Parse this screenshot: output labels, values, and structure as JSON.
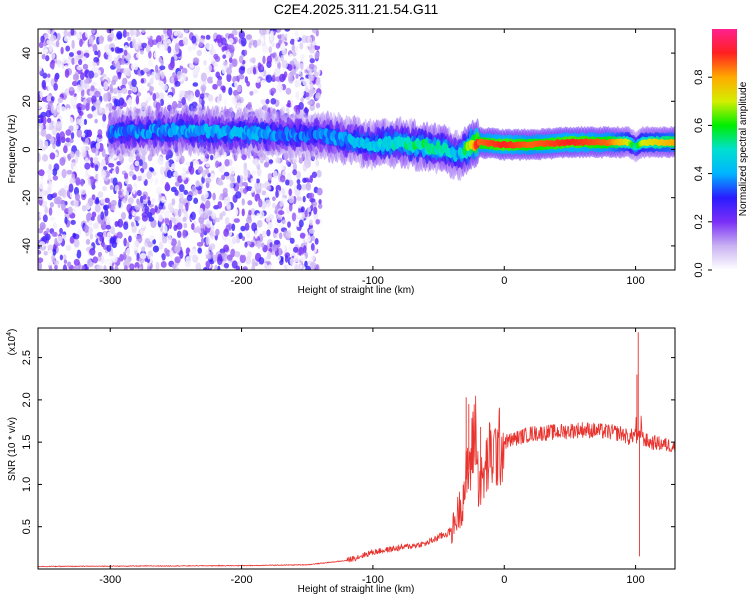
{
  "title": "C2E4.2025.311.21.54.G11",
  "chart_data": [
    {
      "type": "heatmap",
      "name": "spectrogram",
      "xlabel": "Height of straight line (km)",
      "ylabel": "Frequency (Hz)",
      "xlim": [
        -355,
        130
      ],
      "ylim": [
        -50,
        50
      ],
      "xticks": [
        -300,
        -200,
        -100,
        0,
        100
      ],
      "xtick_labels": [
        "-300",
        "-200",
        "-100",
        "0",
        "100"
      ],
      "yticks": [
        -40,
        -20,
        0,
        20,
        40
      ],
      "ytick_labels": [
        "-40",
        "-20",
        "0",
        "20",
        "40"
      ],
      "colorbar": {
        "label": "Normalized spectral amplitude",
        "range": [
          0,
          1
        ],
        "ticks": [
          0.0,
          0.2,
          0.4,
          0.6,
          0.8
        ],
        "tick_labels": [
          "0.0",
          "0.2",
          "0.4",
          "0.6",
          "0.8"
        ],
        "colors": [
          "#ffffff",
          "#c9b2f2",
          "#7b2ff7",
          "#2a1cff",
          "#00b4ff",
          "#00e0d0",
          "#00ee00",
          "#d4ee00",
          "#ffaa00",
          "#ff2020",
          "#ff2090"
        ]
      },
      "ridge": {
        "x": [
          -295,
          -250,
          -200,
          -160,
          -140,
          -120,
          -100,
          -80,
          -60,
          -45,
          -35,
          -28,
          -20,
          0,
          20,
          50,
          80,
          95,
          100,
          105,
          130
        ],
        "center_hz": [
          7,
          8,
          7,
          6,
          6,
          4,
          2,
          3,
          1,
          0,
          -3,
          1,
          3,
          2,
          2,
          3,
          3,
          3,
          1,
          3,
          3
        ],
        "peak_amplitude": [
          0.3,
          0.35,
          0.35,
          0.3,
          0.3,
          0.35,
          0.4,
          0.45,
          0.5,
          0.45,
          0.35,
          0.6,
          0.85,
          0.9,
          0.85,
          0.9,
          0.85,
          0.7,
          0.5,
          0.7,
          0.8
        ]
      },
      "noise_region": {
        "x_from": -355,
        "x_to": -140,
        "amplitude_max": 0.3
      }
    },
    {
      "type": "line",
      "name": "snr",
      "xlabel": "Height of straight line (km)",
      "ylabel": "SNR (10 * v/v)",
      "y_multiplier_label": "(x10",
      "y_multiplier_exponent": "4",
      "color": "#e8332e",
      "xlim": [
        -355,
        130
      ],
      "ylim": [
        0,
        2.85
      ],
      "xticks": [
        -300,
        -200,
        -100,
        0,
        100
      ],
      "xtick_labels": [
        "-300",
        "-200",
        "-100",
        "0",
        "100"
      ],
      "yticks": [
        0.5,
        1.0,
        1.5,
        2.0,
        2.5
      ],
      "ytick_labels": [
        "0.5",
        "1.0",
        "1.5",
        "2.0",
        "2.5"
      ],
      "envelope": {
        "x": [
          -355,
          -200,
          -150,
          -120,
          -100,
          -80,
          -60,
          -40,
          -32,
          -30,
          -25,
          -22,
          -20,
          -17,
          -12,
          -5,
          0,
          10,
          20,
          40,
          60,
          80,
          90,
          95,
          100,
          102,
          105,
          110,
          120,
          130
        ],
        "y": [
          0.03,
          0.04,
          0.05,
          0.1,
          0.2,
          0.25,
          0.3,
          0.45,
          0.8,
          1.0,
          1.3,
          1.75,
          1.1,
          1.0,
          1.3,
          1.4,
          1.5,
          1.55,
          1.6,
          1.62,
          1.65,
          1.62,
          1.6,
          1.55,
          1.6,
          2.8,
          1.55,
          1.5,
          1.48,
          1.45
        ]
      },
      "spikes": [
        {
          "x": -29,
          "y": 2.03
        },
        {
          "x": -27,
          "y": 1.95
        },
        {
          "x": -23,
          "y": 1.7
        },
        {
          "x": -18,
          "y": 1.68
        },
        {
          "x": 101,
          "y": 2.3
        },
        {
          "x": 102,
          "y": 2.8
        },
        {
          "x": 103,
          "y": 0.15
        }
      ]
    }
  ]
}
